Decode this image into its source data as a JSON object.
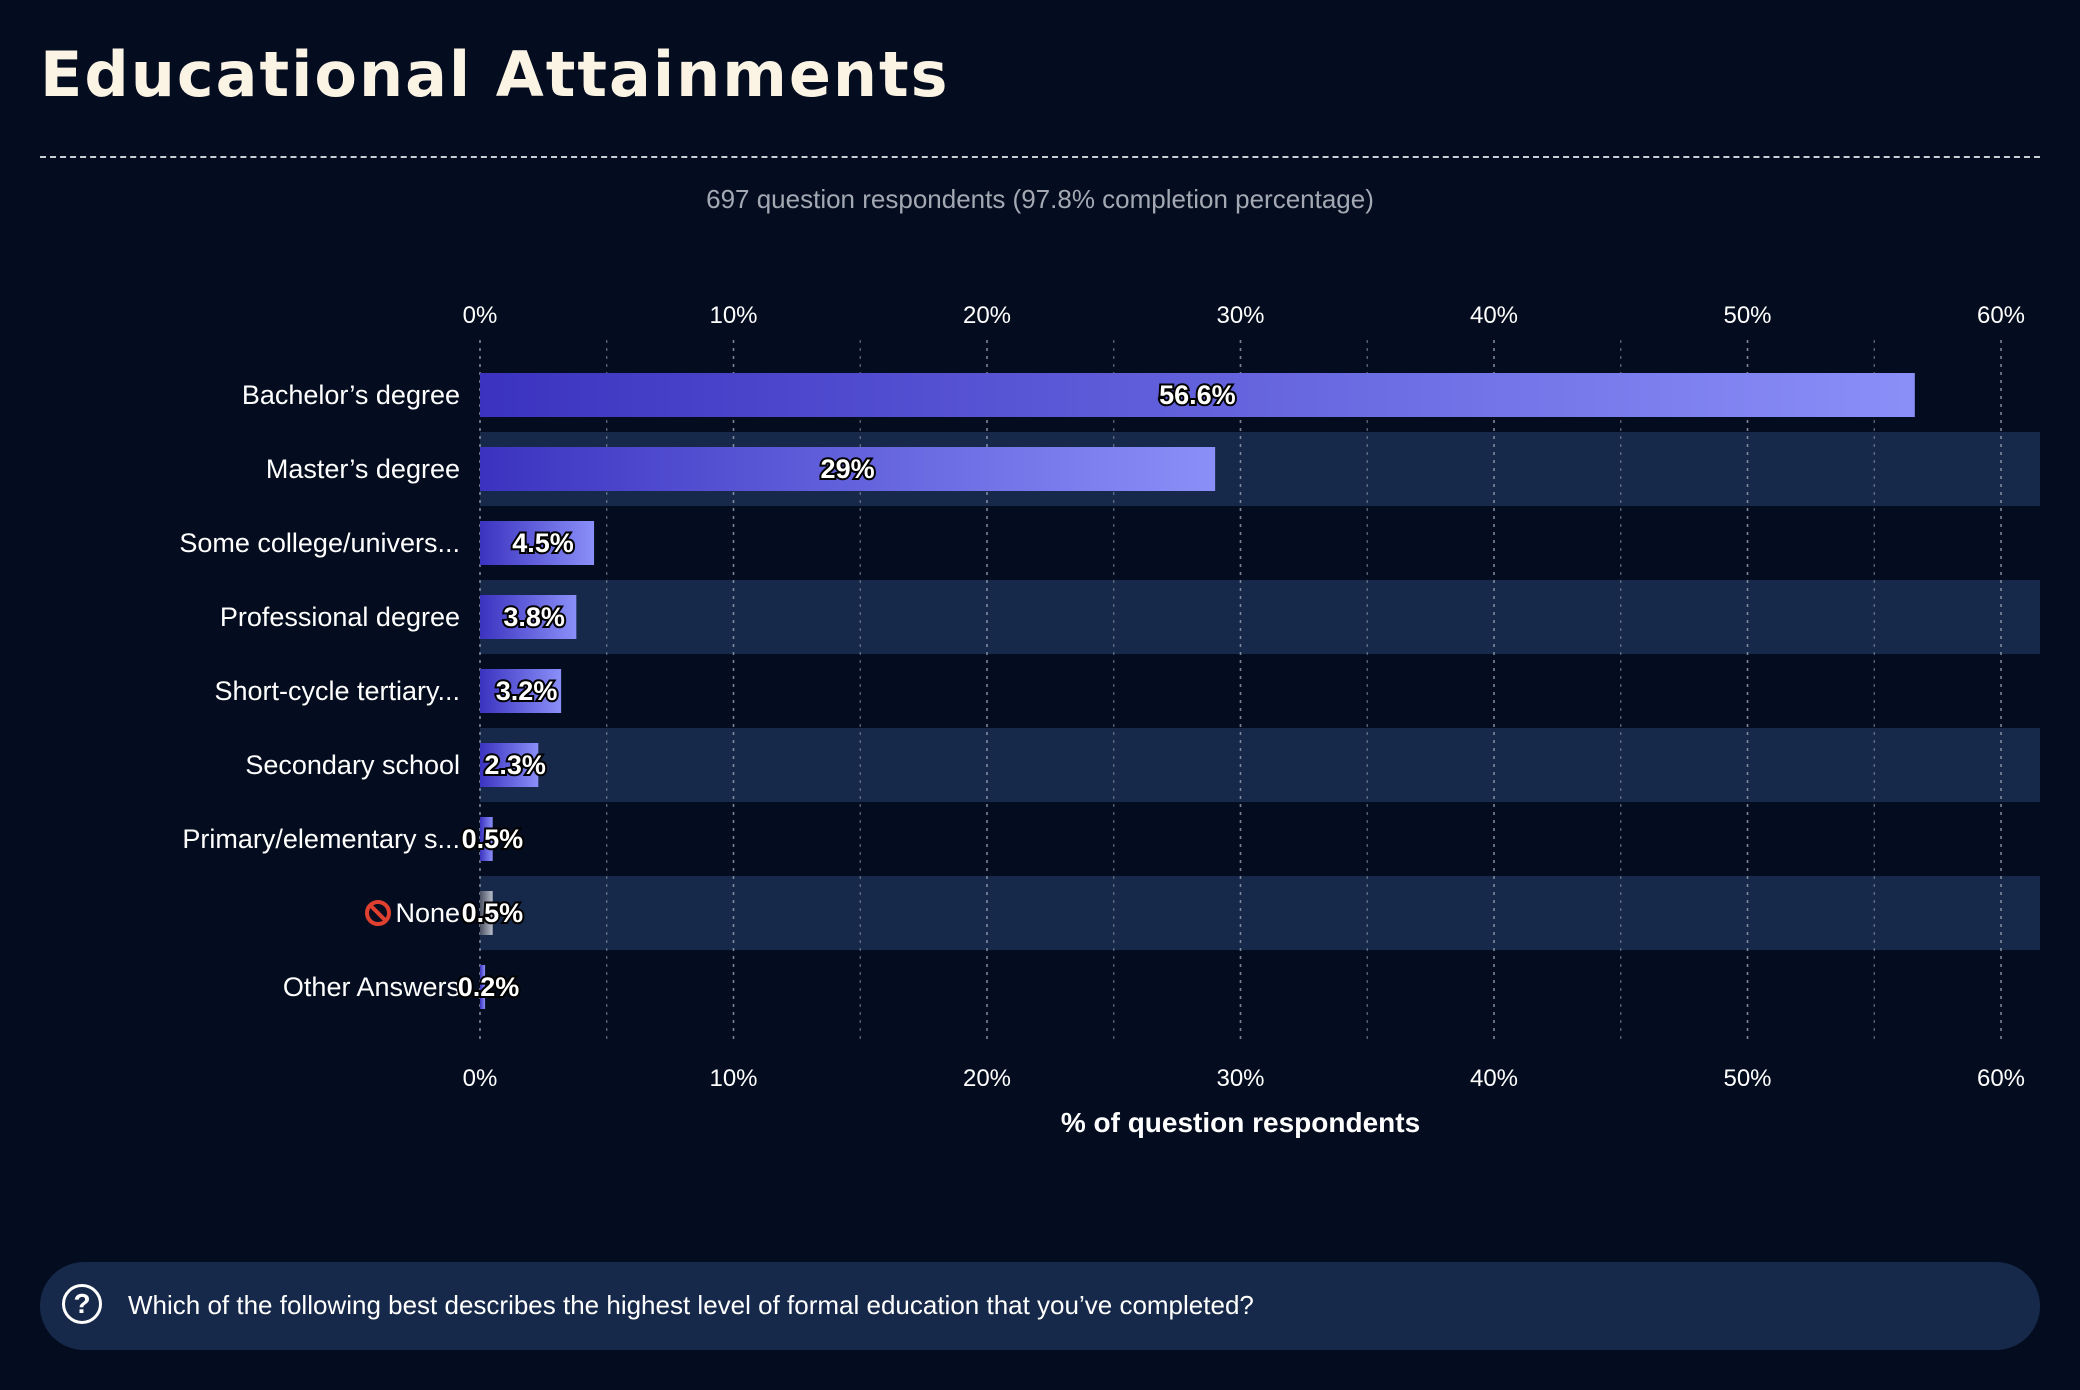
{
  "page": {
    "title": "Educational Attainments",
    "subtitle": "697 question respondents (97.8% completion percentage)",
    "question": "Which of the following best describes the highest level of formal education that you’ve completed?",
    "help_icon": "question-circle-icon"
  },
  "colors": {
    "background": "#040d1f",
    "band": "#17294a",
    "bar_start": "#3b33c0",
    "bar_end": "#8a8ff8",
    "none_bar_start": "#4a5163",
    "none_bar_end": "#b8bdc9",
    "title": "#fbf3e4",
    "grid": "#8b93a6"
  },
  "chart_data": {
    "type": "bar",
    "orientation": "horizontal",
    "categories": [
      "Bachelor’s degree",
      "Master’s degree",
      "Some college/univers...",
      "Professional degree",
      "Short-cycle tertiary...",
      "Secondary school",
      "Primary/elementary s...",
      "None",
      "Other Answers"
    ],
    "category_icons": [
      "",
      "",
      "",
      "",
      "",
      "",
      "",
      "prohibited-icon",
      ""
    ],
    "values": [
      56.6,
      29,
      4.5,
      3.8,
      3.2,
      2.3,
      0.5,
      0.5,
      0.2
    ],
    "value_labels": [
      "56.6%",
      "29%",
      "4.5%",
      "3.8%",
      "3.2%",
      "2.3%",
      "0.5%",
      "0.5%",
      "0.2%"
    ],
    "xlabel": "% of question respondents",
    "xlim": [
      0,
      60
    ],
    "x_ticks": [
      0,
      10,
      20,
      30,
      40,
      50,
      60
    ],
    "x_tick_labels": [
      "0%",
      "10%",
      "20%",
      "30%",
      "40%",
      "50%",
      "60%"
    ],
    "grid": true,
    "axis_position": "top and bottom"
  }
}
